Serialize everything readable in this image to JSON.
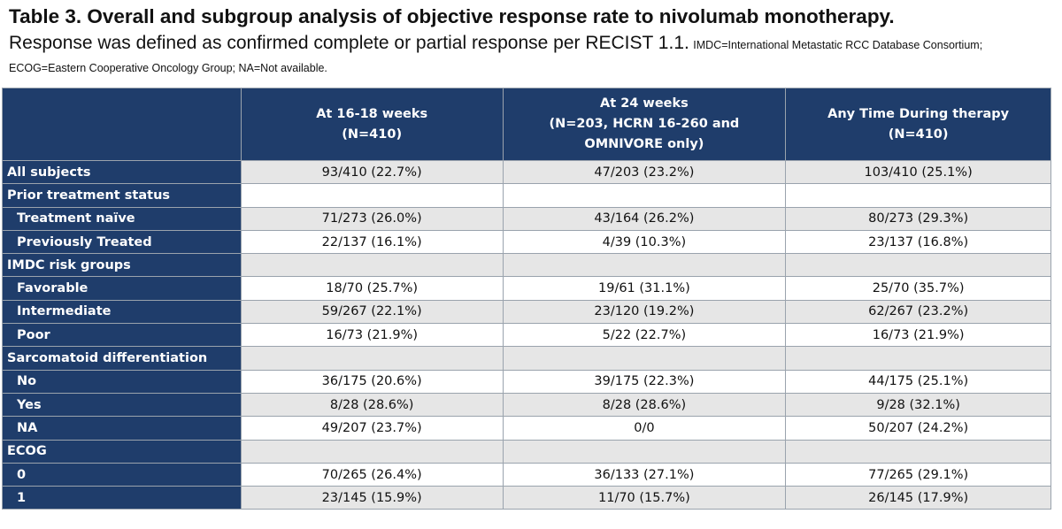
{
  "header": {
    "title": "Table 3. Overall and subgroup analysis of objective response rate to nivolumab monotherapy.",
    "subtitle": "Response was defined as confirmed complete or partial response per RECIST 1.1.",
    "note": "IMDC=International Metastatic RCC Database Consortium; ECOG=Eastern Cooperative Oncology Group; NA=Not available."
  },
  "table": {
    "columns": [
      [
        "At 16-18 weeks",
        "(N=410)"
      ],
      [
        "At 24 weeks",
        "(N=203, HCRN 16-260 and",
        "OMNIVORE only)"
      ],
      [
        "Any Time During therapy",
        "(N=410)"
      ]
    ],
    "rows": [
      {
        "label": "All subjects",
        "values": [
          "93/410 (22.7%)",
          "47/203 (23.2%)",
          "103/410 (25.1%)"
        ]
      },
      {
        "label": "Prior treatment status",
        "rows": [
          {
            "label": "Treatment naïve",
            "values": [
              "71/273 (26.0%)",
              "43/164 (26.2%)",
              "80/273 (29.3%)"
            ]
          },
          {
            "label": "Previously Treated",
            "values": [
              "22/137 (16.1%)",
              "4/39 (10.3%)",
              "23/137 (16.8%)"
            ]
          }
        ]
      },
      {
        "label": "IMDC risk groups",
        "rows": [
          {
            "label": "Favorable",
            "values": [
              "18/70 (25.7%)",
              "19/61 (31.1%)",
              "25/70 (35.7%)"
            ]
          },
          {
            "label": "Intermediate",
            "values": [
              "59/267 (22.1%)",
              "23/120 (19.2%)",
              "62/267 (23.2%)"
            ]
          },
          {
            "label": "Poor",
            "values": [
              "16/73 (21.9%)",
              "5/22 (22.7%)",
              "16/73 (21.9%)"
            ]
          }
        ]
      },
      {
        "label": "Sarcomatoid differentiation",
        "rows": [
          {
            "label": "No",
            "values": [
              "36/175 (20.6%)",
              "39/175 (22.3%)",
              "44/175 (25.1%)"
            ]
          },
          {
            "label": "Yes",
            "values": [
              "8/28 (28.6%)",
              "8/28 (28.6%)",
              "9/28 (32.1%)"
            ]
          },
          {
            "label": "NA",
            "values": [
              "49/207 (23.7%)",
              "0/0",
              "50/207 (24.2%)"
            ]
          }
        ]
      },
      {
        "label": "ECOG",
        "rows": [
          {
            "label": "0",
            "values": [
              "70/265 (26.4%)",
              "36/133 (27.1%)",
              "77/265 (29.1%)"
            ]
          },
          {
            "label": "1",
            "values": [
              "23/145 (15.9%)",
              "11/70 (15.7%)",
              "26/145 (17.9%)"
            ]
          }
        ]
      }
    ]
  }
}
